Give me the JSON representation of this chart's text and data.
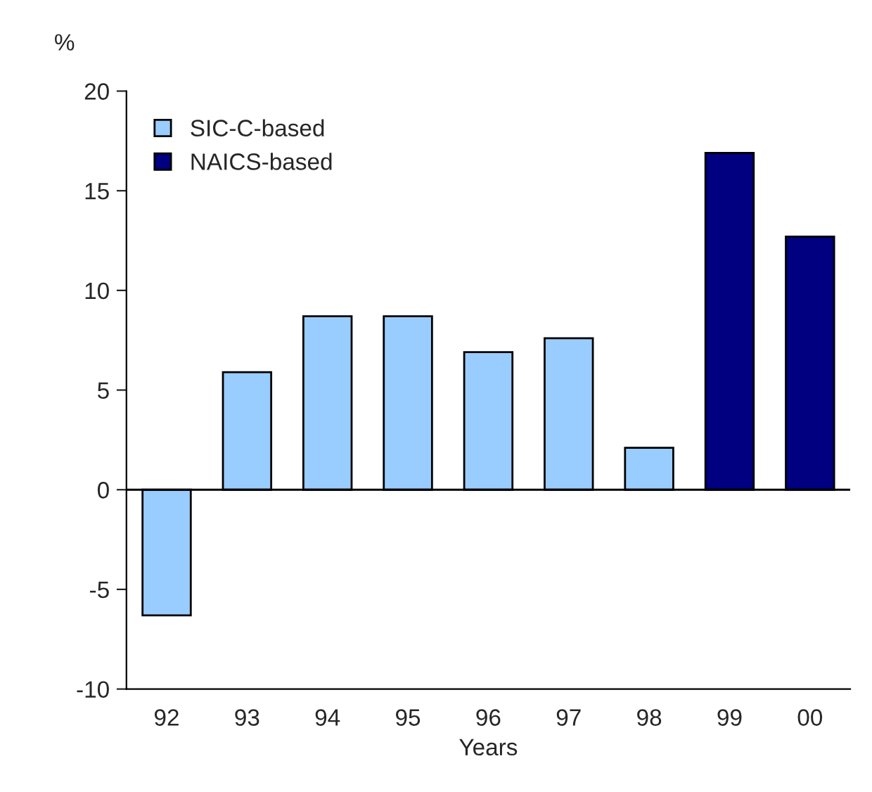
{
  "chart_data": {
    "type": "bar",
    "ylabel": "%",
    "xlabel": "Years",
    "categories": [
      "92",
      "93",
      "94",
      "95",
      "96",
      "97",
      "98",
      "99",
      "00"
    ],
    "series": [
      {
        "name": "SIC-C-based",
        "color": "#99ccff",
        "values": [
          -6.3,
          5.9,
          8.7,
          8.7,
          6.9,
          7.6,
          2.1,
          null,
          null
        ]
      },
      {
        "name": "NAICS-based",
        "color": "#000080",
        "values": [
          null,
          null,
          null,
          null,
          null,
          null,
          null,
          16.9,
          12.7
        ]
      }
    ],
    "ylim": [
      -10,
      20
    ],
    "yticks": [
      -10,
      -5,
      0,
      5,
      10,
      15,
      20
    ],
    "legend": "top left"
  }
}
